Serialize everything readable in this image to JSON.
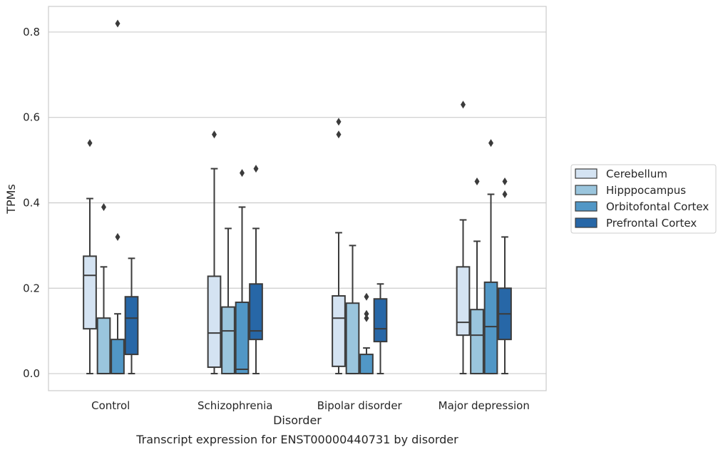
{
  "chart_data": {
    "type": "box",
    "xlabel": "Disorder",
    "ylabel": "TPMs",
    "caption": "Transcript expression for ENST00000440731 by disorder",
    "ylim": [
      -0.04,
      0.86
    ],
    "yticks": [
      "0.0",
      "0.2",
      "0.4",
      "0.6",
      "0.8"
    ],
    "ytick_values": [
      0.0,
      0.2,
      0.4,
      0.6,
      0.8
    ],
    "grid": true,
    "legend_position": "right",
    "categories": [
      "Control",
      "Schizophrenia",
      "Bipolar disorder",
      "Major depression"
    ],
    "series": [
      {
        "name": "Cerebellum",
        "color": "#d4e3f2",
        "boxes": [
          {
            "min": 0.0,
            "q1": 0.105,
            "median": 0.23,
            "q3": 0.275,
            "max": 0.41,
            "outliers": [
              0.54
            ]
          },
          {
            "min": 0.0,
            "q1": 0.015,
            "median": 0.095,
            "q3": 0.228,
            "max": 0.48,
            "outliers": [
              0.56
            ]
          },
          {
            "min": 0.0,
            "q1": 0.017,
            "median": 0.13,
            "q3": 0.182,
            "max": 0.33,
            "outliers": [
              0.56,
              0.59
            ]
          },
          {
            "min": 0.0,
            "q1": 0.09,
            "median": 0.12,
            "q3": 0.25,
            "max": 0.36,
            "outliers": [
              0.63
            ]
          }
        ]
      },
      {
        "name": "Hipppocampus",
        "color": "#9ac5dd",
        "boxes": [
          {
            "min": 0.0,
            "q1": 0.0,
            "median": 0.0,
            "q3": 0.13,
            "max": 0.25,
            "outliers": [
              0.39
            ]
          },
          {
            "min": 0.0,
            "q1": 0.0,
            "median": 0.1,
            "q3": 0.156,
            "max": 0.34,
            "outliers": []
          },
          {
            "min": 0.0,
            "q1": 0.0,
            "median": 0.0,
            "q3": 0.165,
            "max": 0.3,
            "outliers": []
          },
          {
            "min": 0.0,
            "q1": 0.0,
            "median": 0.09,
            "q3": 0.15,
            "max": 0.31,
            "outliers": [
              0.45
            ]
          }
        ]
      },
      {
        "name": "Orbitofontal Cortex",
        "color": "#5197c6",
        "boxes": [
          {
            "min": 0.0,
            "q1": 0.0,
            "median": 0.0,
            "q3": 0.08,
            "max": 0.14,
            "outliers": [
              0.32,
              0.82
            ]
          },
          {
            "min": 0.0,
            "q1": 0.0,
            "median": 0.01,
            "q3": 0.167,
            "max": 0.39,
            "outliers": [
              0.47
            ]
          },
          {
            "min": 0.0,
            "q1": 0.0,
            "median": 0.0,
            "q3": 0.045,
            "max": 0.06,
            "outliers": [
              0.13,
              0.14,
              0.18
            ]
          },
          {
            "min": 0.0,
            "q1": 0.0,
            "median": 0.11,
            "q3": 0.214,
            "max": 0.42,
            "outliers": [
              0.54
            ]
          }
        ]
      },
      {
        "name": "Prefrontal Cortex",
        "color": "#2767a7",
        "boxes": [
          {
            "min": 0.0,
            "q1": 0.045,
            "median": 0.13,
            "q3": 0.18,
            "max": 0.27,
            "outliers": []
          },
          {
            "min": 0.0,
            "q1": 0.08,
            "median": 0.1,
            "q3": 0.21,
            "max": 0.34,
            "outliers": [
              0.48
            ]
          },
          {
            "min": 0.0,
            "q1": 0.075,
            "median": 0.105,
            "q3": 0.175,
            "max": 0.21,
            "outliers": []
          },
          {
            "min": 0.0,
            "q1": 0.08,
            "median": 0.14,
            "q3": 0.2,
            "max": 0.32,
            "outliers": [
              0.42,
              0.45
            ]
          }
        ]
      }
    ]
  }
}
